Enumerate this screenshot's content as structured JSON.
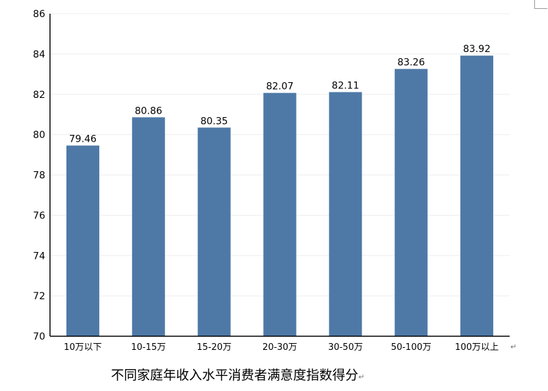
{
  "chart_data": {
    "type": "bar",
    "categories": [
      "10万以下",
      "10-15万",
      "15-20万",
      "20-30万",
      "30-50万",
      "50-100万",
      "100万以上"
    ],
    "values": [
      79.46,
      80.86,
      80.35,
      82.07,
      82.11,
      83.26,
      83.92
    ],
    "value_labels": [
      "79.46",
      "80.86",
      "80.35",
      "82.07",
      "82.11",
      "83.26",
      "83.92"
    ],
    "ylim": [
      70,
      86
    ],
    "yticks": [
      70,
      72,
      74,
      76,
      78,
      80,
      82,
      84,
      86
    ],
    "grid": true,
    "bar_color": "#4e79a7",
    "caption": "不同家庭年收入水平消费者满意度指数得分"
  },
  "marks": {
    "para": "↵"
  }
}
